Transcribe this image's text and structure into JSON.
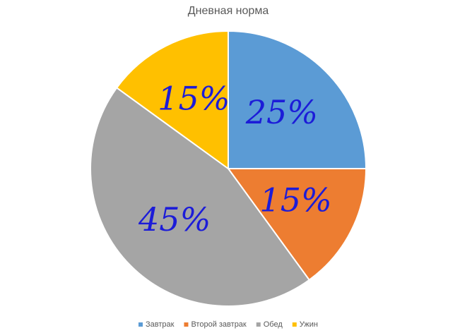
{
  "chart_data": {
    "type": "pie",
    "title": "Дневная норма",
    "categories": [
      "Завтрак",
      "Второй завтрак",
      "Обед",
      "Ужин"
    ],
    "values": [
      25,
      15,
      45,
      15
    ],
    "value_labels": [
      "25%",
      "15%",
      "45%",
      "15%"
    ],
    "colors": [
      "#5b9bd5",
      "#ed7d31",
      "#a5a5a5",
      "#ffc000"
    ],
    "legend": "bottom"
  }
}
